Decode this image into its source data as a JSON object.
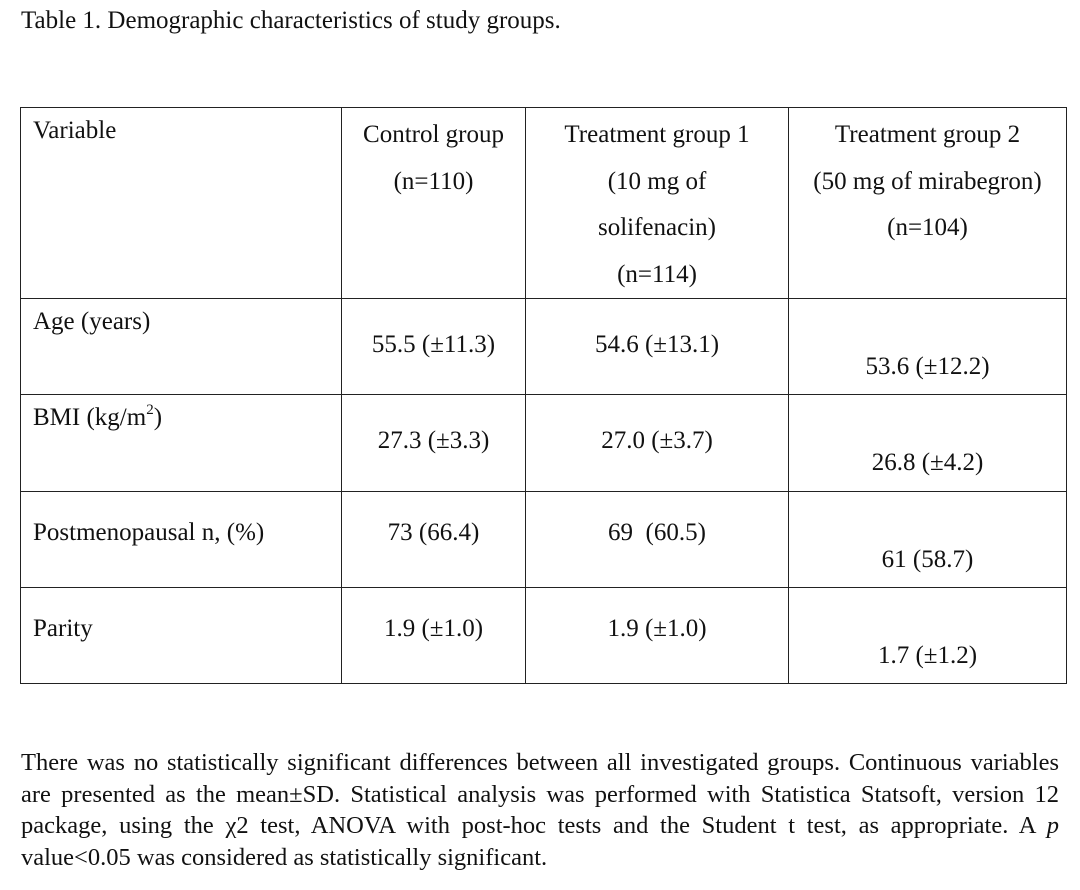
{
  "caption": "Table 1. Demographic characteristics of study groups.",
  "table": {
    "variable_header": "Variable",
    "columns": [
      {
        "lines": [
          "Control group",
          "(n=110)"
        ]
      },
      {
        "lines": [
          "Treatment group 1",
          "(10 mg of",
          "solifenacin)",
          "(n=114)"
        ]
      },
      {
        "lines": [
          "Treatment group 2",
          "(50 mg of mirabegron)",
          "(n=104)"
        ]
      }
    ],
    "rows": [
      {
        "label": "Age (years)",
        "values": [
          "55.5 (±11.3)",
          "54.6 (±13.1)",
          "53.6 (±12.2)"
        ]
      },
      {
        "label_main": "BMI (kg/m",
        "label_sup": "2",
        "label_end": ")",
        "values": [
          "27.3 (±3.3)",
          "27.0 (±3.7)",
          "26.8 (±4.2)"
        ]
      },
      {
        "label": "Postmenopausal n, (%)",
        "values": [
          "73 (66.4)",
          "69  (60.5)",
          "61 (58.7)"
        ]
      },
      {
        "label": "Parity",
        "values": [
          "1.9 (±1.0)",
          "1.9 (±1.0)",
          "1.7 (±1.2)"
        ]
      }
    ]
  },
  "footnote": {
    "part1": "There was no statistically significant differences between all investigated groups. Continuous variables are presented as the mean±SD. Statistical analysis was performed with Statistica Statsoft, version 12 package, using the χ2 test, ANOVA with post-hoc tests and the Student t test, as appropriate. A ",
    "italic": "p",
    "part2": " value<0.05 was considered as statistically significant."
  }
}
